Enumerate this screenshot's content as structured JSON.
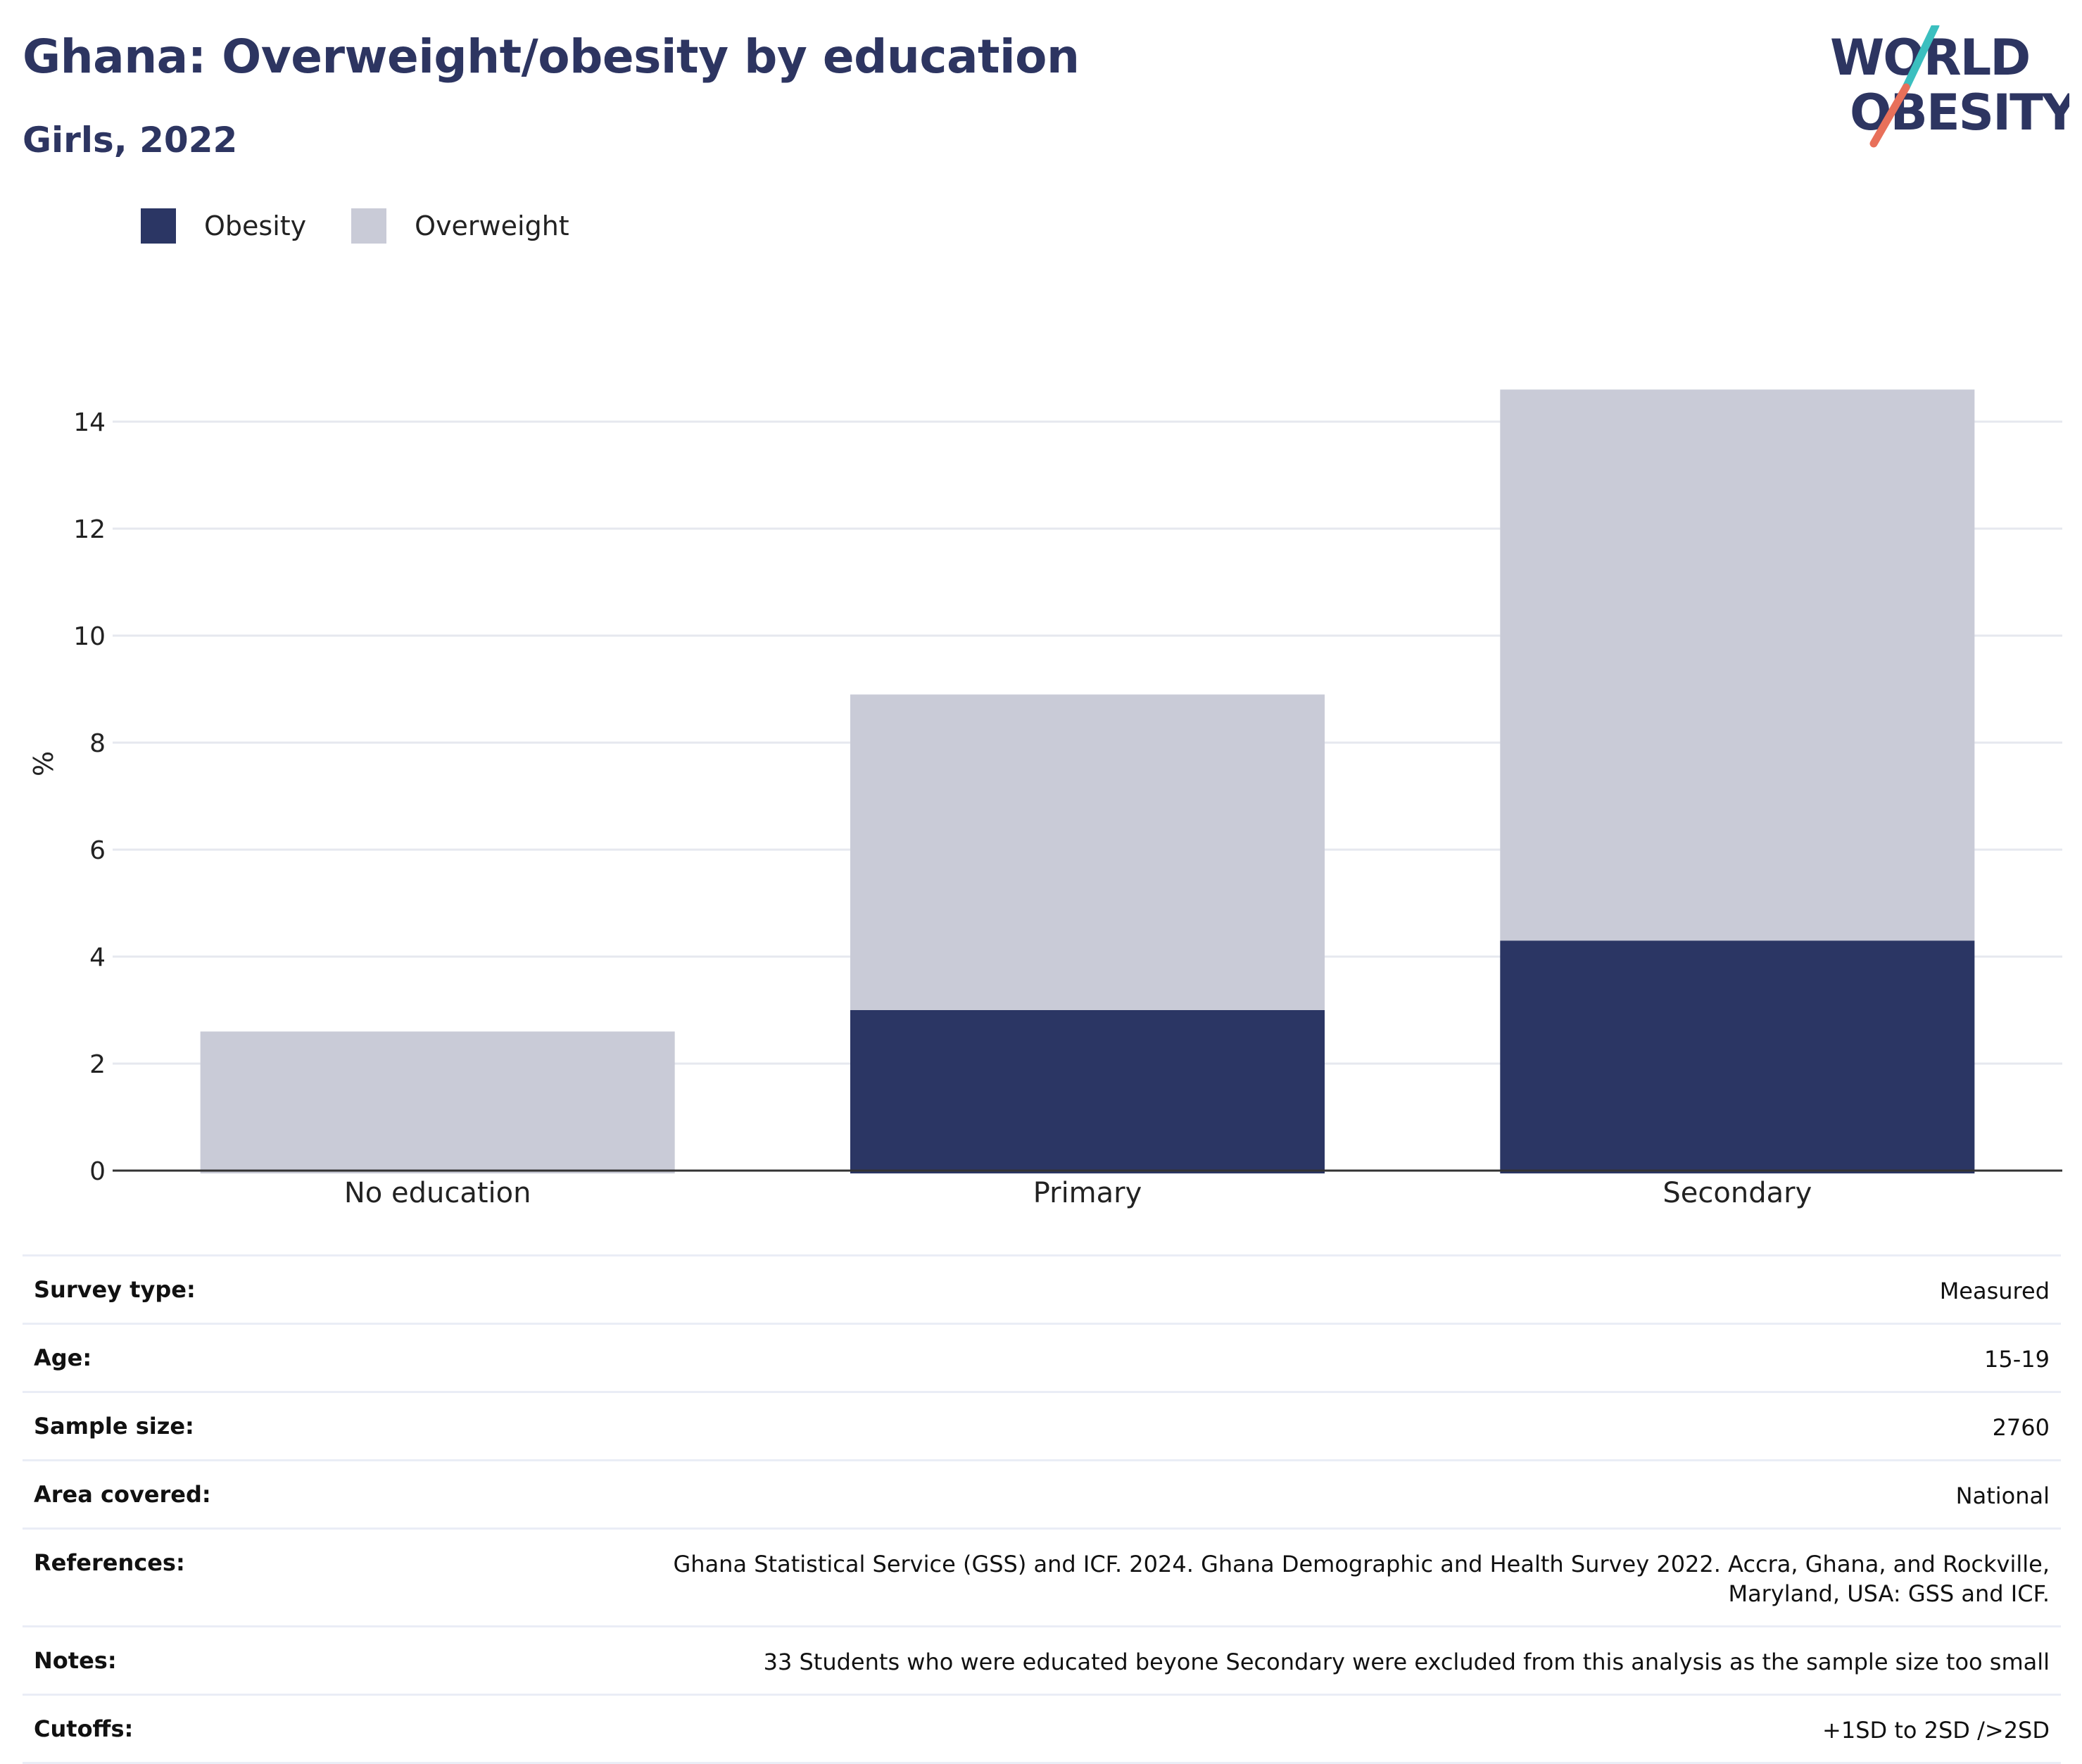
{
  "header": {
    "title": "Ghana: Overweight/obesity by education",
    "subtitle": "Girls, 2022"
  },
  "logo": {
    "line1": "WORLD",
    "line2": "OBESITY",
    "text_color": "#2d3561",
    "slash_top_color": "#3bbfbf",
    "slash_bottom_color": "#e8705a"
  },
  "colors": {
    "obesity": "#2b3664",
    "overweight": "#c9cbd7",
    "gridline": "#e6e8ef",
    "axis": "#333333"
  },
  "chart_data": {
    "type": "bar",
    "stacked": true,
    "categories": [
      "No education",
      "Primary",
      "Secondary"
    ],
    "series": [
      {
        "name": "Obesity",
        "values": [
          0.0,
          3.0,
          4.3
        ]
      },
      {
        "name": "Overweight",
        "values": [
          2.6,
          5.9,
          10.3
        ]
      }
    ],
    "ylabel": "%",
    "ylim": [
      0,
      14.6
    ],
    "yticks": [
      0,
      2,
      4,
      6,
      8,
      10,
      12,
      14
    ],
    "grid": true,
    "legend_position": "top-left"
  },
  "meta": [
    {
      "key": "Survey type:",
      "value": "Measured"
    },
    {
      "key": "Age:",
      "value": "15-19"
    },
    {
      "key": "Sample size:",
      "value": "2760"
    },
    {
      "key": "Area covered:",
      "value": "National"
    },
    {
      "key": "References:",
      "value": "Ghana Statistical Service (GSS) and ICF. 2024. Ghana Demographic and Health Survey 2022. Accra, Ghana, and Rockville, Maryland, USA: GSS and ICF."
    },
    {
      "key": "Notes:",
      "value": "33 Students who were educated beyone Secondary were excluded from this analysis as the sample size too small"
    },
    {
      "key": "Cutoffs:",
      "value": "+1SD to 2SD />2SD"
    }
  ]
}
